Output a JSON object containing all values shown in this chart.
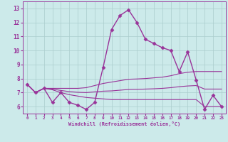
{
  "xlabel": "Windchill (Refroidissement éolien,°C)",
  "background_color": "#cceaea",
  "grid_color": "#aacccc",
  "line_color": "#993399",
  "xlim": [
    -0.5,
    23.5
  ],
  "ylim": [
    5.5,
    13.5
  ],
  "xticks": [
    0,
    1,
    2,
    3,
    4,
    5,
    6,
    7,
    8,
    9,
    10,
    11,
    12,
    13,
    14,
    15,
    16,
    17,
    18,
    19,
    20,
    21,
    22,
    23
  ],
  "yticks": [
    6,
    7,
    8,
    9,
    10,
    11,
    12,
    13
  ],
  "series": [
    {
      "x": [
        0,
        1,
        2,
        3,
        4,
        5,
        6,
        7,
        8,
        9,
        10,
        11,
        12,
        13,
        14,
        15,
        16,
        17,
        18,
        19,
        20,
        21,
        22,
        23
      ],
      "y": [
        7.6,
        7.0,
        7.3,
        6.3,
        7.0,
        6.3,
        6.1,
        5.8,
        6.3,
        8.8,
        11.5,
        12.5,
        12.9,
        12.0,
        10.8,
        10.5,
        10.2,
        10.0,
        8.5,
        9.9,
        7.9,
        5.8,
        6.8,
        6.0
      ],
      "marker": "D",
      "marker_size": 2.5,
      "linewidth": 1.0
    },
    {
      "x": [
        0,
        1,
        2,
        3,
        4,
        5,
        6,
        7,
        8,
        9,
        10,
        11,
        12,
        13,
        14,
        15,
        16,
        17,
        18,
        19,
        20,
        21,
        22,
        23
      ],
      "y": [
        7.6,
        7.0,
        7.3,
        7.3,
        7.3,
        7.3,
        7.3,
        7.35,
        7.5,
        7.65,
        7.75,
        7.85,
        7.95,
        7.97,
        8.0,
        8.05,
        8.1,
        8.2,
        8.35,
        8.45,
        8.5,
        8.5,
        8.5,
        8.5
      ],
      "marker": null,
      "linewidth": 0.8
    },
    {
      "x": [
        0,
        1,
        2,
        3,
        4,
        5,
        6,
        7,
        8,
        9,
        10,
        11,
        12,
        13,
        14,
        15,
        16,
        17,
        18,
        19,
        20,
        21,
        22,
        23
      ],
      "y": [
        7.6,
        7.0,
        7.3,
        7.2,
        7.0,
        6.85,
        6.75,
        6.65,
        6.6,
        6.55,
        6.5,
        6.5,
        6.5,
        6.5,
        6.5,
        6.5,
        6.5,
        6.5,
        6.5,
        6.5,
        6.5,
        6.0,
        6.0,
        6.0
      ],
      "marker": null,
      "linewidth": 0.8
    },
    {
      "x": [
        0,
        1,
        2,
        3,
        4,
        5,
        6,
        7,
        8,
        9,
        10,
        11,
        12,
        13,
        14,
        15,
        16,
        17,
        18,
        19,
        20,
        21,
        22,
        23
      ],
      "y": [
        7.6,
        7.0,
        7.3,
        7.25,
        7.15,
        7.07,
        7.02,
        7.0,
        7.05,
        7.1,
        7.12,
        7.17,
        7.22,
        7.23,
        7.25,
        7.27,
        7.3,
        7.35,
        7.42,
        7.47,
        7.5,
        7.25,
        7.25,
        7.25
      ],
      "marker": null,
      "linewidth": 0.8
    }
  ]
}
